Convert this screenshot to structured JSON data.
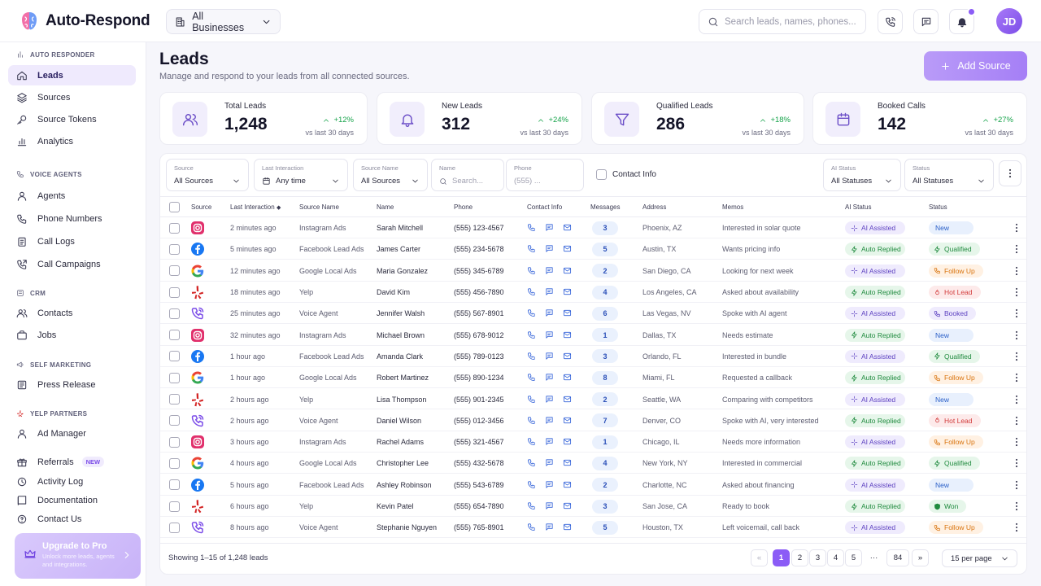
{
  "app": {
    "name": "Auto-Respond"
  },
  "header": {
    "business_selector": "All Businesses",
    "search_placeholder": "Search leads, names, phones...",
    "avatar_initials": "JD"
  },
  "sidebar": {
    "sections": {
      "auto_responder": "AUTO RESPONDER",
      "voice_agents": "VOICE AGENTS",
      "crm": "CRM",
      "self_marketing": "SELF MARKETING",
      "yelp_partners": "YELP PARTNERS"
    },
    "items": {
      "leads": "Leads",
      "sources": "Sources",
      "source_tokens": "Source Tokens",
      "analytics": "Analytics",
      "agents": "Agents",
      "phone_numbers": "Phone Numbers",
      "call_logs": "Call Logs",
      "call_campaigns": "Call Campaigns",
      "contacts": "Contacts",
      "jobs": "Jobs",
      "press_release": "Press Release",
      "ad_manager": "Ad Manager",
      "referrals": "Referrals",
      "referrals_badge": "NEW",
      "activity_log": "Activity Log",
      "documentation": "Documentation",
      "contact_us": "Contact Us"
    },
    "upgrade": {
      "title": "Upgrade to Pro",
      "subtitle_line1": "Unlock more leads, agents",
      "subtitle_line2": "and integrations."
    }
  },
  "page": {
    "title": "Leads",
    "subtitle": "Manage and respond to your leads from all connected sources.",
    "add_source_label": "Add Source"
  },
  "stats": [
    {
      "label": "Total Leads",
      "value": "1,248",
      "delta": "+12%",
      "compare": "vs last 30 days"
    },
    {
      "label": "New Leads",
      "value": "312",
      "delta": "+24%",
      "compare": "vs last 30 days"
    },
    {
      "label": "Qualified Leads",
      "value": "286",
      "delta": "+18%",
      "compare": "vs last 30 days"
    },
    {
      "label": "Booked Calls",
      "value": "142",
      "delta": "+27%",
      "compare": "vs last 30 days"
    }
  ],
  "filters": {
    "source": {
      "label": "Source",
      "value": "All Sources"
    },
    "last_interaction": {
      "label": "Last Interaction",
      "value": "Any time"
    },
    "source_name": {
      "label": "Source Name",
      "value": "All Sources"
    },
    "name": {
      "label": "Name",
      "placeholder": "Search..."
    },
    "phone": {
      "label": "Phone",
      "placeholder": "(555) ..."
    },
    "contact_info": "Contact Info",
    "ai_status": {
      "label": "AI Status",
      "value": "All Statuses"
    },
    "status": {
      "label": "Status",
      "value": "All Statuses"
    }
  },
  "table": {
    "columns": {
      "source": "Source",
      "last_interaction": "Last Interaction",
      "source_name": "Source Name",
      "name": "Name",
      "phone": "Phone",
      "contact_info": "Contact Info",
      "messages": "Messages",
      "address": "Address",
      "memos": "Memos",
      "ai_status": "AI Status",
      "status": "Status"
    },
    "rows": [
      {
        "source": "instagram",
        "time": "2 minutes ago",
        "source_name": "Instagram Ads",
        "name": "Sarah Mitchell",
        "phone": "(555) 123-4567",
        "messages": "3",
        "address": "Phoenix, AZ",
        "memo": "Interested in solar quote",
        "ai": "AI Assisted",
        "status": "New"
      },
      {
        "source": "facebook",
        "time": "5 minutes ago",
        "source_name": "Facebook Lead Ads",
        "name": "James Carter",
        "phone": "(555) 234-5678",
        "messages": "5",
        "address": "Austin, TX",
        "memo": "Wants pricing info",
        "ai": "Auto Replied",
        "status": "Qualified"
      },
      {
        "source": "google",
        "time": "12 minutes ago",
        "source_name": "Google Local Ads",
        "name": "Maria Gonzalez",
        "phone": "(555) 345-6789",
        "messages": "2",
        "address": "San Diego, CA",
        "memo": "Looking for next week",
        "ai": "AI Assisted",
        "status": "Follow Up"
      },
      {
        "source": "yelp",
        "time": "18 minutes ago",
        "source_name": "Yelp",
        "name": "David Kim",
        "phone": "(555) 456-7890",
        "messages": "4",
        "address": "Los Angeles, CA",
        "memo": "Asked about availability",
        "ai": "Auto Replied",
        "status": "Hot Lead"
      },
      {
        "source": "voice",
        "time": "25 minutes ago",
        "source_name": "Voice Agent",
        "name": "Jennifer Walsh",
        "phone": "(555) 567-8901",
        "messages": "6",
        "address": "Las Vegas, NV",
        "memo": "Spoke with AI agent",
        "ai": "AI Assisted",
        "status": "Booked"
      },
      {
        "source": "instagram",
        "time": "32 minutes ago",
        "source_name": "Instagram Ads",
        "name": "Michael Brown",
        "phone": "(555) 678-9012",
        "messages": "1",
        "address": "Dallas, TX",
        "memo": "Needs estimate",
        "ai": "Auto Replied",
        "status": "New"
      },
      {
        "source": "facebook",
        "time": "1 hour ago",
        "source_name": "Facebook Lead Ads",
        "name": "Amanda Clark",
        "phone": "(555) 789-0123",
        "messages": "3",
        "address": "Orlando, FL",
        "memo": "Interested in bundle",
        "ai": "AI Assisted",
        "status": "Qualified"
      },
      {
        "source": "google",
        "time": "1 hour ago",
        "source_name": "Google Local Ads",
        "name": "Robert Martinez",
        "phone": "(555) 890-1234",
        "messages": "8",
        "address": "Miami, FL",
        "memo": "Requested a callback",
        "ai": "Auto Replied",
        "status": "Follow Up"
      },
      {
        "source": "yelp",
        "time": "2 hours ago",
        "source_name": "Yelp",
        "name": "Lisa Thompson",
        "phone": "(555) 901-2345",
        "messages": "2",
        "address": "Seattle, WA",
        "memo": "Comparing with competitors",
        "ai": "AI Assisted",
        "status": "New"
      },
      {
        "source": "voice",
        "time": "2 hours ago",
        "source_name": "Voice Agent",
        "name": "Daniel Wilson",
        "phone": "(555) 012-3456",
        "messages": "7",
        "address": "Denver, CO",
        "memo": "Spoke with AI, very interested",
        "ai": "Auto Replied",
        "status": "Hot Lead"
      },
      {
        "source": "instagram",
        "time": "3 hours ago",
        "source_name": "Instagram Ads",
        "name": "Rachel Adams",
        "phone": "(555) 321-4567",
        "messages": "1",
        "address": "Chicago, IL",
        "memo": "Needs more information",
        "ai": "AI Assisted",
        "status": "Follow Up"
      },
      {
        "source": "google",
        "time": "4 hours ago",
        "source_name": "Google Local Ads",
        "name": "Christopher Lee",
        "phone": "(555) 432-5678",
        "messages": "4",
        "address": "New York, NY",
        "memo": "Interested in commercial",
        "ai": "Auto Replied",
        "status": "Qualified"
      },
      {
        "source": "facebook",
        "time": "5 hours ago",
        "source_name": "Facebook Lead Ads",
        "name": "Ashley Robinson",
        "phone": "(555) 543-6789",
        "messages": "2",
        "address": "Charlotte, NC",
        "memo": "Asked about financing",
        "ai": "AI Assisted",
        "status": "New"
      },
      {
        "source": "yelp",
        "time": "6 hours ago",
        "source_name": "Yelp",
        "name": "Kevin Patel",
        "phone": "(555) 654-7890",
        "messages": "3",
        "address": "San Jose, CA",
        "memo": "Ready to book",
        "ai": "Auto Replied",
        "status": "Won"
      },
      {
        "source": "voice",
        "time": "8 hours ago",
        "source_name": "Voice Agent",
        "name": "Stephanie Nguyen",
        "phone": "(555) 765-8901",
        "messages": "5",
        "address": "Houston, TX",
        "memo": "Left voicemail, call back",
        "ai": "AI Assisted",
        "status": "Follow Up"
      }
    ]
  },
  "footer": {
    "showing": "Showing 1–15 of 1,248 leads",
    "pages": [
      "1",
      "2",
      "3",
      "4",
      "5"
    ],
    "ellipsis": "···",
    "last_page": "84",
    "prev": "«",
    "next": "»",
    "per_page": "15 per page"
  },
  "colors": {
    "accent": "#8b5cf6",
    "instagram": "#e1306c",
    "facebook": "#1877f2",
    "yelp": "#d32323",
    "voice": "#7c4de8",
    "status": {
      "New": {
        "bg": "#e8f0fd",
        "fg": "#2a5fc8"
      },
      "Qualified": {
        "bg": "#e6f6ea",
        "fg": "#1f8a3e"
      },
      "Follow Up": {
        "bg": "#fff1e3",
        "fg": "#d9740f"
      },
      "Hot Lead": {
        "bg": "#fdeaea",
        "fg": "#d23b3b"
      },
      "Booked": {
        "bg": "#efebfd",
        "fg": "#5b3fc0"
      },
      "Won": {
        "bg": "#e6f6ea",
        "fg": "#1f8a3e"
      }
    }
  }
}
